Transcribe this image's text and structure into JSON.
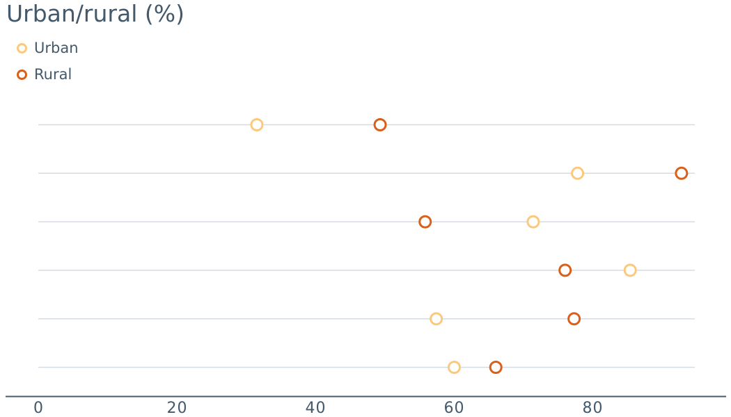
{
  "chart_data": {
    "type": "scatter",
    "title": "Urban/rural (%)",
    "xlabel": "",
    "ylabel": "",
    "xlim": [
      0,
      95
    ],
    "xticks": [
      0,
      20,
      40,
      60,
      80
    ],
    "grid": true,
    "legend_position": "top-left",
    "series": [
      {
        "name": "Urban",
        "color": "#fcc97c",
        "values": [
          31.5,
          77.8,
          71.4,
          85.4,
          57.4,
          60.0
        ]
      },
      {
        "name": "Rural",
        "color": "#d9601a",
        "values": [
          49.3,
          92.8,
          55.8,
          76.0,
          77.3,
          66.0
        ]
      }
    ]
  }
}
